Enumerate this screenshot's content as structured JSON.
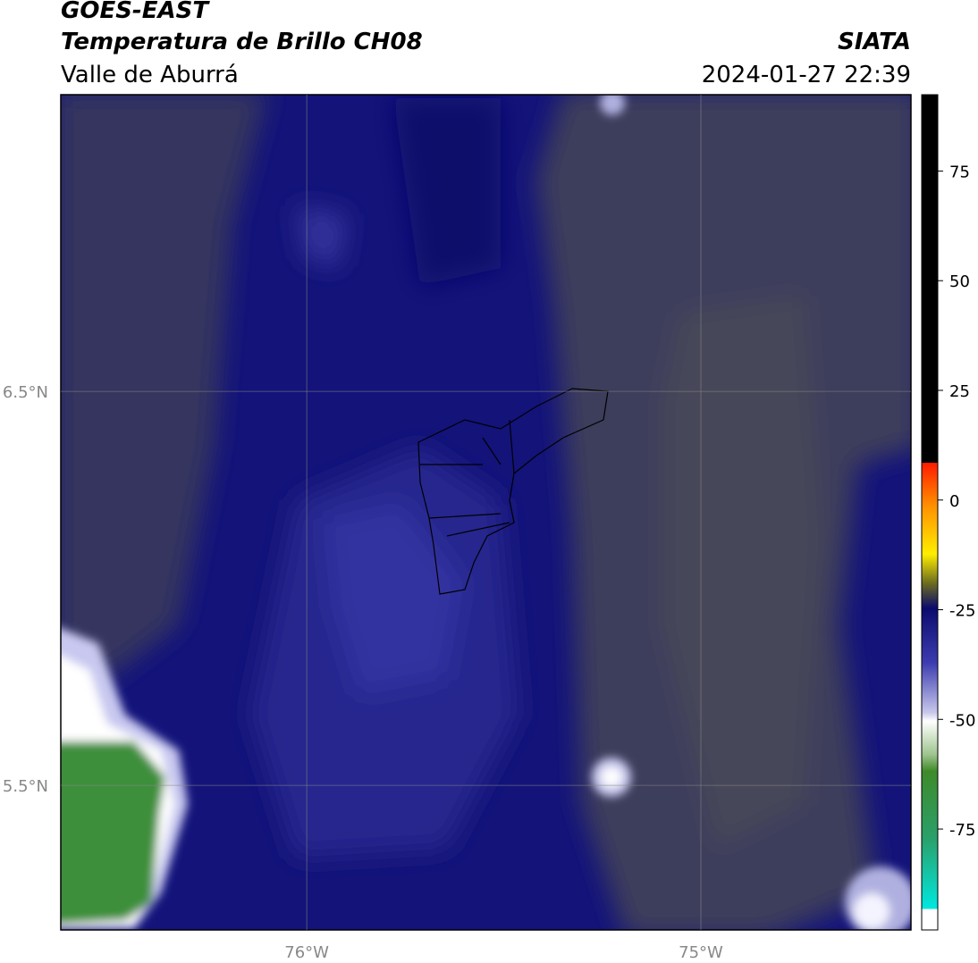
{
  "header": {
    "title": "GOES-EAST",
    "subtitle": "Temperatura de Brillo CH08",
    "region": "Valle de Aburrá",
    "source": "SIATA",
    "datetime": "2024-01-27 22:39"
  },
  "map": {
    "lon_range": [
      -76.624,
      -74.467
    ],
    "lat_range": [
      5.133,
      7.253
    ],
    "lon_ticks": [
      {
        "value": -76,
        "label": "76°W"
      },
      {
        "value": -75,
        "label": "75°W"
      }
    ],
    "lat_ticks": [
      {
        "value": 6.5,
        "label": "6.5°N"
      },
      {
        "value": 5.5,
        "label": "5.5°N"
      }
    ]
  },
  "colorbar": {
    "range": [
      -98,
      92.4
    ],
    "ticks": [
      75,
      50,
      25,
      0,
      -25,
      -50,
      -75
    ]
  }
}
